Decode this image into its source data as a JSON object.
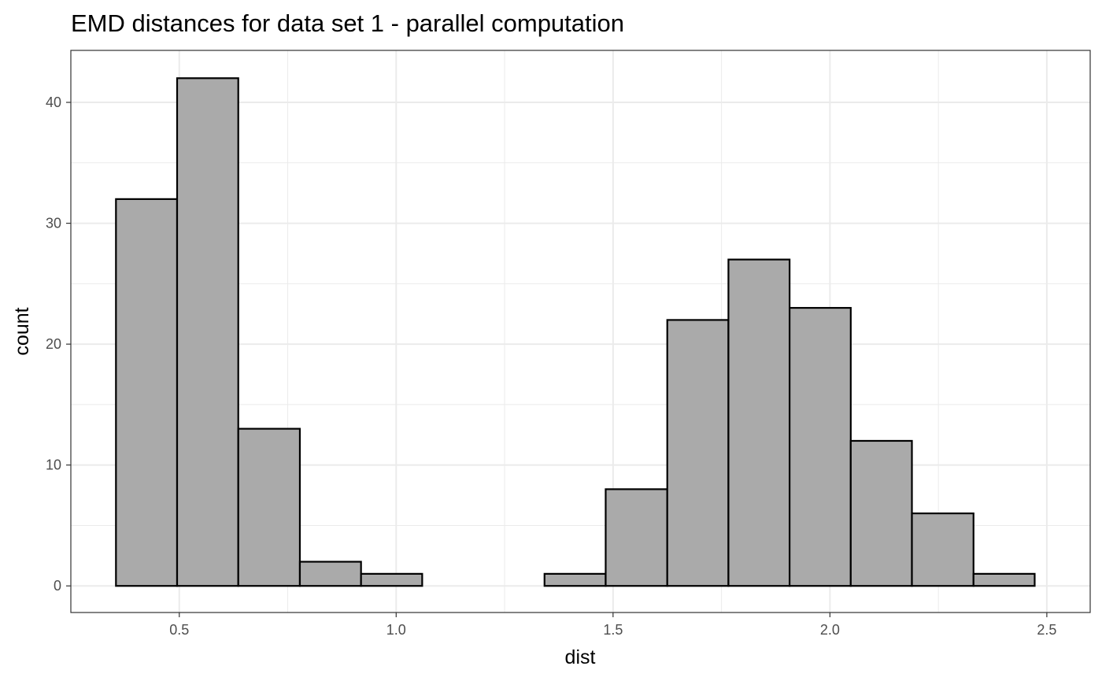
{
  "chart_data": {
    "type": "bar",
    "title": "EMD distances for data set 1 - parallel computation",
    "xlabel": "dist",
    "ylabel": "count",
    "xlim": [
      0.25,
      2.6
    ],
    "ylim": [
      -2.2,
      44.3
    ],
    "x_ticks": [
      {
        "value": 0.5,
        "label": "0.5"
      },
      {
        "value": 1.0,
        "label": "1.0"
      },
      {
        "value": 1.5,
        "label": "1.5"
      },
      {
        "value": 2.0,
        "label": "2.0"
      },
      {
        "value": 2.5,
        "label": "2.5"
      }
    ],
    "y_ticks": [
      {
        "value": 0,
        "label": "0"
      },
      {
        "value": 10,
        "label": "10"
      },
      {
        "value": 20,
        "label": "20"
      },
      {
        "value": 30,
        "label": "30"
      },
      {
        "value": 40,
        "label": "40"
      }
    ],
    "grid": true,
    "bins": [
      {
        "x0": 0.354,
        "x1": 0.495,
        "count": 32
      },
      {
        "x0": 0.495,
        "x1": 0.636,
        "count": 42
      },
      {
        "x0": 0.636,
        "x1": 0.778,
        "count": 13
      },
      {
        "x0": 0.778,
        "x1": 0.919,
        "count": 2
      },
      {
        "x0": 0.919,
        "x1": 1.06,
        "count": 1
      },
      {
        "x0": 1.06,
        "x1": 1.201,
        "count": 0
      },
      {
        "x0": 1.201,
        "x1": 1.342,
        "count": 0
      },
      {
        "x0": 1.342,
        "x1": 1.483,
        "count": 1
      },
      {
        "x0": 1.483,
        "x1": 1.625,
        "count": 8
      },
      {
        "x0": 1.625,
        "x1": 1.766,
        "count": 22
      },
      {
        "x0": 1.766,
        "x1": 1.907,
        "count": 27
      },
      {
        "x0": 1.907,
        "x1": 2.048,
        "count": 23
      },
      {
        "x0": 2.048,
        "x1": 2.189,
        "count": 12
      },
      {
        "x0": 2.189,
        "x1": 2.331,
        "count": 6
      },
      {
        "x0": 2.331,
        "x1": 2.472,
        "count": 1
      }
    ],
    "colors": {
      "bar_fill": "#aaaaaa",
      "bar_stroke": "#000000"
    }
  }
}
